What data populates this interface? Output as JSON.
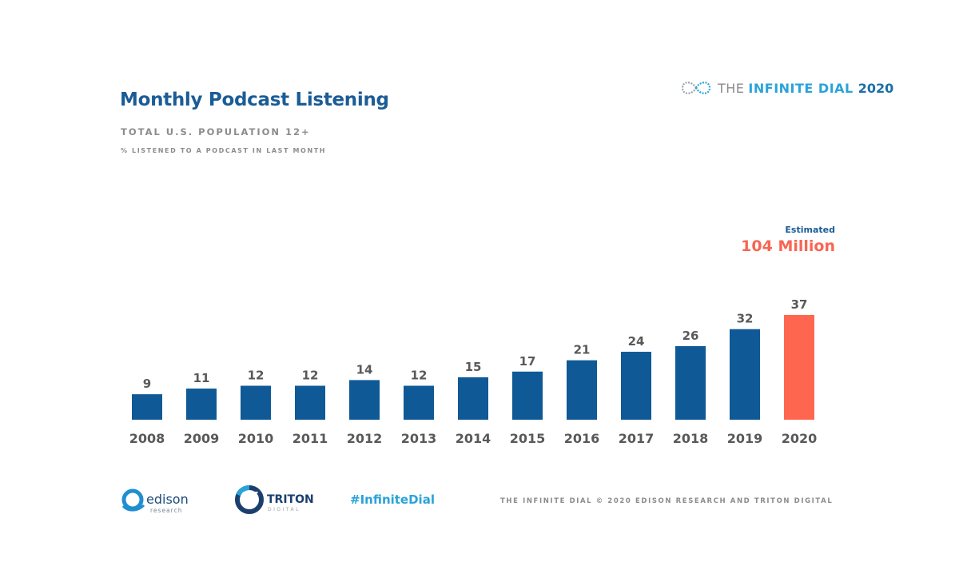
{
  "header": {
    "title": "Monthly Podcast Listening",
    "subtitle": "TOTAL U.S. POPULATION 12+",
    "subsubtitle": "% LISTENED TO A PODCAST IN LAST MONTH"
  },
  "brand": {
    "the_text": "THE",
    "dial_text": "INFINITE DIAL",
    "year": "2020",
    "icon": "infinity-icon"
  },
  "annotation": {
    "label": "Estimated",
    "value": "104 Million"
  },
  "chart_data": {
    "type": "bar",
    "categories": [
      "2008",
      "2009",
      "2010",
      "2011",
      "2012",
      "2013",
      "2014",
      "2015",
      "2016",
      "2017",
      "2018",
      "2019",
      "2020"
    ],
    "values": [
      9,
      11,
      12,
      12,
      14,
      12,
      15,
      17,
      21,
      24,
      26,
      32,
      37
    ],
    "highlight_index": 12,
    "colors": {
      "bar": "#0f5996",
      "highlight": "#ff6650",
      "value_label": "#595959",
      "axis_label": "#595959"
    },
    "ylim": [
      0,
      37
    ],
    "grid": false,
    "title": "",
    "xlabel": "",
    "ylabel": ""
  },
  "footer": {
    "edison_main": "edison",
    "edison_sub": "research",
    "triton_main": "TRITON",
    "triton_sub": "DIGITAL",
    "hashtag": "#InfiniteDial",
    "copyright": "THE INFINITE DIAL   © 2020 EDISON RESEARCH AND TRITON DIGITAL"
  }
}
